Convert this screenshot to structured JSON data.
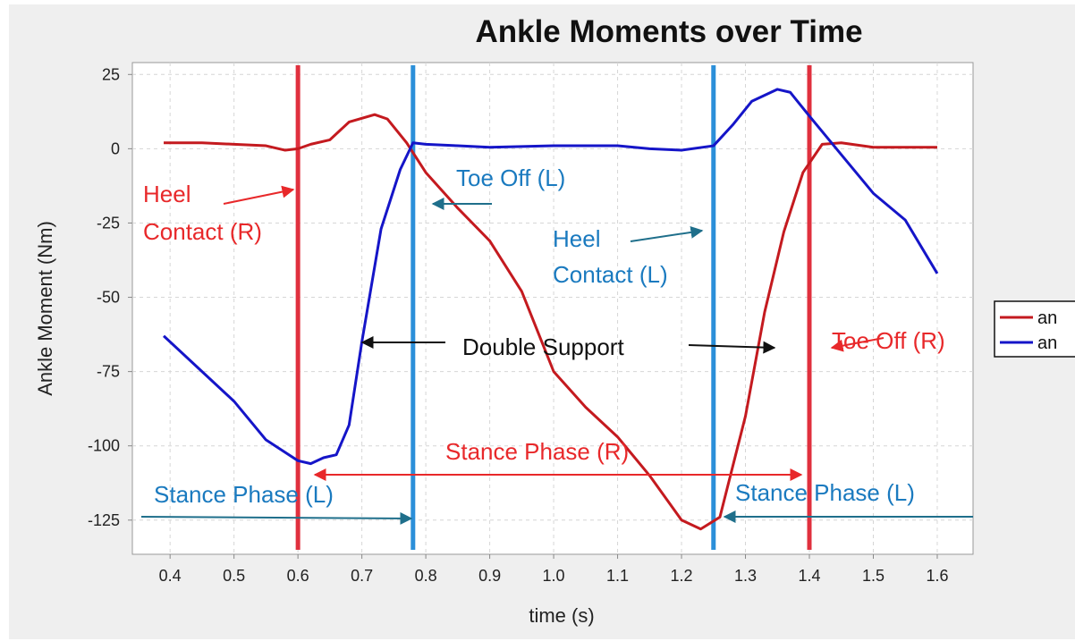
{
  "chart_data": {
    "type": "line",
    "title": "Ankle Moments over Time",
    "xlabel": "time (s)",
    "ylabel": "Ankle Moment (Nm)",
    "xlim": [
      0.341,
      1.656
    ],
    "ylim": [
      -136.5,
      29
    ],
    "xticks": [
      0.4,
      0.5,
      0.6,
      0.7,
      0.8,
      0.9,
      {
        "value": 1,
        "label": "1.0"
      },
      1.1,
      1.2,
      1.3,
      1.4,
      1.5,
      1.6
    ],
    "yticks": [
      25,
      0,
      -25,
      -50,
      -75,
      -100,
      -125
    ],
    "grid": true,
    "legend": "right",
    "series": [
      {
        "name": "an",
        "color": "#c41a1f",
        "x": [
          0.39,
          0.45,
          0.5,
          0.55,
          0.58,
          0.6,
          0.62,
          0.65,
          0.68,
          0.72,
          0.74,
          0.77,
          0.8,
          0.85,
          0.9,
          0.95,
          1.0,
          1.05,
          1.1,
          1.15,
          1.2,
          1.23,
          1.26,
          1.3,
          1.33,
          1.36,
          1.39,
          1.42,
          1.45,
          1.5,
          1.6
        ],
        "values": [
          2,
          2,
          1.5,
          1,
          -0.5,
          0,
          1.5,
          3,
          9,
          11.5,
          10,
          2,
          -8,
          -20,
          -31,
          -48,
          -75,
          -87,
          -97,
          -110,
          -125,
          -128,
          -124,
          -90,
          -55,
          -28,
          -8,
          1.5,
          2,
          0.5,
          0.5
        ]
      },
      {
        "name": "an",
        "color": "#1515c8",
        "x": [
          0.39,
          0.45,
          0.5,
          0.55,
          0.6,
          0.62,
          0.64,
          0.66,
          0.68,
          0.7,
          0.73,
          0.76,
          0.78,
          0.8,
          0.85,
          0.9,
          1.0,
          1.1,
          1.15,
          1.2,
          1.25,
          1.28,
          1.31,
          1.35,
          1.37,
          1.4,
          1.45,
          1.5,
          1.55,
          1.6
        ],
        "values": [
          -63,
          -75,
          -85,
          -98,
          -105,
          -106,
          -104,
          -103,
          -93,
          -65,
          -27,
          -7,
          2,
          1.5,
          1,
          0.5,
          1,
          1,
          0,
          -0.5,
          1,
          8,
          16,
          20,
          19,
          11,
          -2,
          -15,
          -24,
          -42
        ]
      }
    ],
    "events": [
      {
        "x": 0.6,
        "color": "#e0303e"
      },
      {
        "x": 0.78,
        "color": "#2b8fd9"
      },
      {
        "x": 1.25,
        "color": "#2b8fd9"
      },
      {
        "x": 1.4,
        "color": "#e0303e"
      }
    ],
    "annotations": [
      "Heel",
      "Contact (R)",
      "Toe Off (L)",
      "Heel",
      "Contact (L)",
      "Double Support",
      "Toe Off (R)",
      "Stance Phase (R)",
      "Stance Phase (L)",
      "Stance Phase (L)"
    ]
  }
}
